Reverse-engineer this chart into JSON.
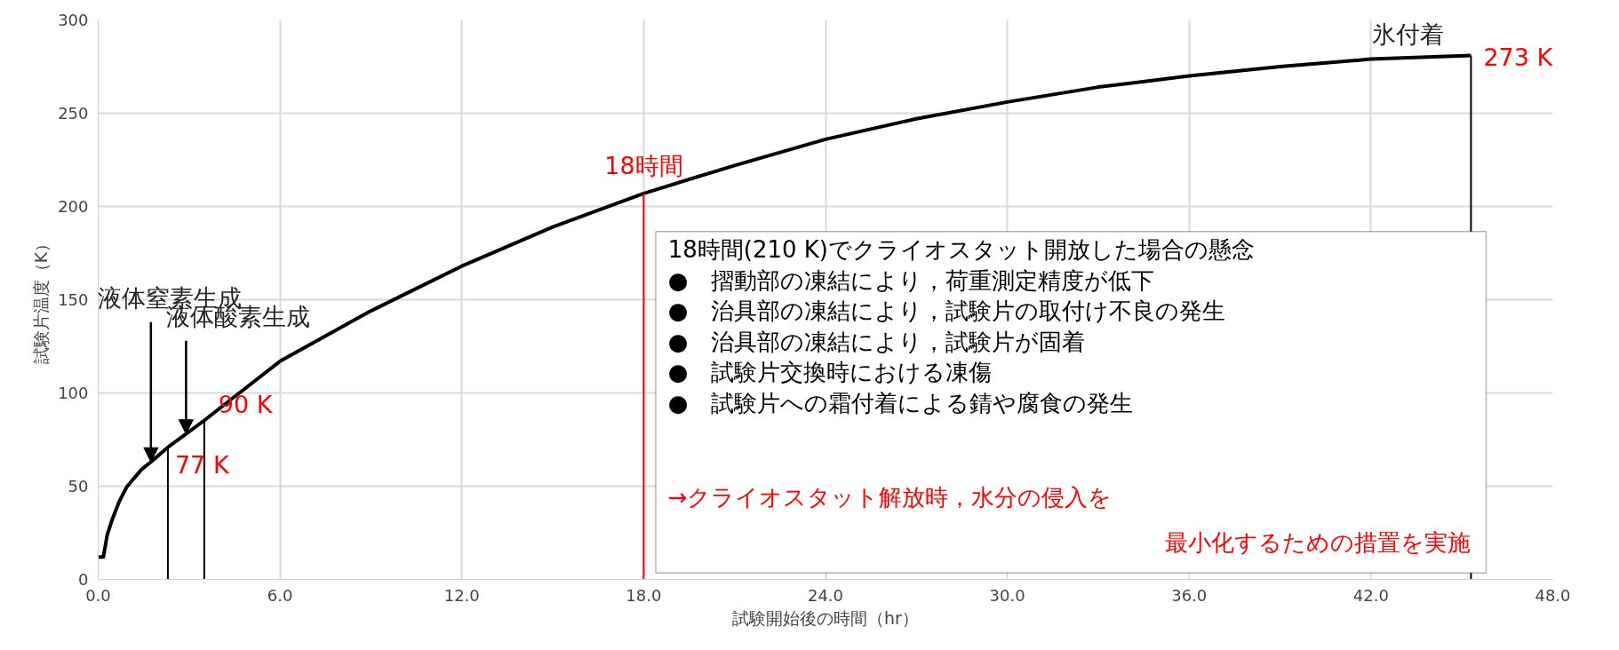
{
  "chart_data": {
    "type": "line",
    "xlabel": "試験開始後の時間（hr）",
    "ylabel": "試験片温度（K）",
    "x": [
      0,
      0.17,
      0.3,
      0.46,
      0.7,
      0.94,
      1.43,
      1.74,
      2.31,
      2.9,
      3.48,
      4.5,
      6.0,
      9,
      12,
      15,
      18,
      21,
      24,
      27,
      30,
      33,
      36,
      39,
      42,
      45.3
    ],
    "series": [
      {
        "color": "#000000",
        "values": [
          12,
          12,
          24,
          32,
          42,
          49.5,
          59,
          63,
          71,
          78,
          85,
          98,
          117,
          144,
          168,
          189,
          207,
          222,
          236,
          247,
          256,
          264,
          270,
          275,
          279,
          281
        ]
      }
    ],
    "xlim": [
      0,
      48
    ],
    "ylim": [
      0,
      300
    ],
    "xticks": [
      {
        "value": 0,
        "label": "0.0"
      },
      {
        "value": 6,
        "label": "6.0"
      },
      {
        "value": 12,
        "label": "12.0"
      },
      {
        "value": 18,
        "label": "18.0"
      },
      {
        "value": 24,
        "label": "24.0"
      },
      {
        "value": 30,
        "label": "30.0"
      },
      {
        "value": 36,
        "label": "36.0"
      },
      {
        "value": 42,
        "label": "42.0"
      },
      {
        "value": 48,
        "label": "48.0"
      }
    ],
    "yticks": [
      0,
      50,
      100,
      150,
      200,
      250,
      300
    ],
    "grid": true,
    "marker": "none",
    "line_style": "solid",
    "ref_lines": [
      {
        "axis": "x",
        "value": 2.3,
        "label": "77 K",
        "color": "#000000"
      },
      {
        "axis": "x",
        "value": 3.5,
        "label": "90 K",
        "color": "#000000"
      },
      {
        "axis": "x",
        "value": 18,
        "label": "18時間",
        "color": "#ff0000"
      },
      {
        "axis": "x",
        "value": 45.3,
        "label": "273 K",
        "color": "#000000"
      }
    ],
    "annotations": [
      {
        "text": "液体窒素生成",
        "x": 1.74,
        "y": 63
      },
      {
        "text": "液体酸素生成",
        "x": 2.9,
        "y": 78
      },
      {
        "text": "氷付着",
        "x": 45.3,
        "y": 281
      },
      "18時間(210 K)でクライオスタット開放した場合の懸念\n●　摺動部の凍結により，荷重測定精度が低下\n●　治具部の凍結により，試験片の取付け不良の発生\n●　治具部の凍結により，試験片が固着\n●　試験片交換時における凍傷\n●　試験片への霜付着による錆や腐食の発生",
      "→クライオスタット解放時，水分の侵入を",
      "最小化するための措置を実施"
    ]
  }
}
